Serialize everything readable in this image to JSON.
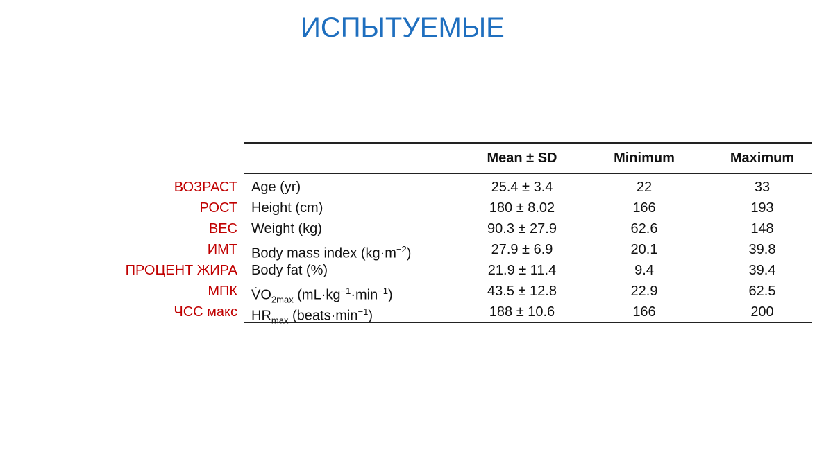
{
  "title": "ИСПЫТУЕМЫЕ",
  "table": {
    "headers": [
      "Mean ± SD",
      "Minimum",
      "Maximum"
    ],
    "rows": [
      {
        "label": "ВОЗРАСТ",
        "variable": [
          {
            "text": "Age (yr)"
          }
        ],
        "mean": "25.4 ± 3.4",
        "min": "22",
        "max": "33"
      },
      {
        "label": "РОСТ",
        "variable": [
          {
            "text": "Height (cm)"
          }
        ],
        "mean": "180 ± 8.02",
        "min": "166",
        "max": "193"
      },
      {
        "label": "ВЕС",
        "variable": [
          {
            "text": "Weight (kg)"
          }
        ],
        "mean": "90.3 ± 27.9",
        "min": "62.6",
        "max": "148"
      },
      {
        "label": "ИМТ",
        "variable": [
          {
            "text": "Body mass index (kg·m"
          },
          {
            "sup": "−2"
          },
          {
            "text": ")"
          }
        ],
        "mean": "27.9 ± 6.9",
        "min": "20.1",
        "max": "39.8"
      },
      {
        "label": "ПРОЦЕНТ ЖИРА",
        "variable": [
          {
            "text": "Body fat (%)"
          }
        ],
        "mean": "21.9 ± 11.4",
        "min": "9.4",
        "max": "39.4"
      },
      {
        "label": "МПК",
        "variable": [
          {
            "text": "V̇O"
          },
          {
            "sub": "2max"
          },
          {
            "text": " (mL·kg"
          },
          {
            "sup": "−1"
          },
          {
            "text": "·min"
          },
          {
            "sup": "−1"
          },
          {
            "text": ")"
          }
        ],
        "mean": "43.5 ± 12.8",
        "min": "22.9",
        "max": "62.5"
      },
      {
        "label": "ЧСС макс",
        "variable": [
          {
            "text": "HR"
          },
          {
            "sub": "max"
          },
          {
            "text": " (beats·min"
          },
          {
            "sup": "−1"
          },
          {
            "text": ")"
          }
        ],
        "mean": "188 ± 10.6",
        "min": "166",
        "max": "200"
      }
    ]
  }
}
